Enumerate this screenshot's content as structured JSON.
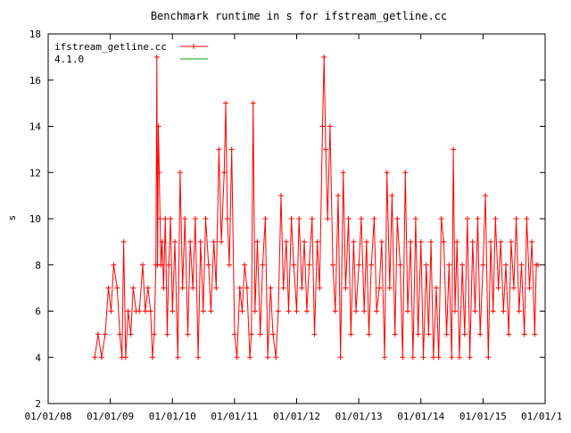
{
  "chart_data": {
    "type": "line",
    "title": "Benchmark runtime in s for ifstream_getline.cc",
    "xlabel": "",
    "ylabel": "s",
    "ylim": [
      2,
      18
    ],
    "yticks": [
      "2",
      "4",
      "6",
      "8",
      "10",
      "12",
      "14",
      "16",
      "18"
    ],
    "xlim": [
      "2008-01-01",
      "2016-01-01"
    ],
    "xticks": [
      "01/01/08",
      "01/01/09",
      "01/01/10",
      "01/01/11",
      "01/01/12",
      "01/01/13",
      "01/01/14",
      "01/01/15",
      "01/01/1"
    ],
    "grid": false,
    "legend_position": "top-left",
    "series": [
      {
        "name": "ifstream_getline.cc",
        "color": "#ff0000",
        "marker": "plus",
        "points": [
          [
            "2008-10-01",
            4
          ],
          [
            "2008-10-20",
            5
          ],
          [
            "2008-11-10",
            4
          ],
          [
            "2008-12-01",
            5
          ],
          [
            "2008-12-20",
            7
          ],
          [
            "2009-01-05",
            6
          ],
          [
            "2009-01-20",
            8
          ],
          [
            "2009-02-10",
            7
          ],
          [
            "2009-02-25",
            5
          ],
          [
            "2009-03-10",
            4
          ],
          [
            "2009-03-20",
            9
          ],
          [
            "2009-04-01",
            4
          ],
          [
            "2009-04-15",
            6
          ],
          [
            "2009-05-01",
            5
          ],
          [
            "2009-05-15",
            7
          ],
          [
            "2009-06-01",
            6
          ],
          [
            "2009-06-20",
            6
          ],
          [
            "2009-07-10",
            8
          ],
          [
            "2009-07-25",
            6
          ],
          [
            "2009-08-10",
            7
          ],
          [
            "2009-08-25",
            6
          ],
          [
            "2009-09-05",
            4
          ],
          [
            "2009-09-15",
            5
          ],
          [
            "2009-09-25",
            8
          ],
          [
            "2009-10-01",
            17
          ],
          [
            "2009-10-05",
            8
          ],
          [
            "2009-10-10",
            14
          ],
          [
            "2009-10-15",
            12
          ],
          [
            "2009-10-20",
            10
          ],
          [
            "2009-10-25",
            8
          ],
          [
            "2009-11-01",
            9
          ],
          [
            "2009-11-10",
            7
          ],
          [
            "2009-11-20",
            10
          ],
          [
            "2009-12-01",
            5
          ],
          [
            "2009-12-10",
            8
          ],
          [
            "2009-12-20",
            10
          ],
          [
            "2010-01-01",
            6
          ],
          [
            "2010-01-15",
            9
          ],
          [
            "2010-02-01",
            4
          ],
          [
            "2010-02-15",
            12
          ],
          [
            "2010-03-01",
            7
          ],
          [
            "2010-03-15",
            10
          ],
          [
            "2010-04-01",
            5
          ],
          [
            "2010-04-15",
            9
          ],
          [
            "2010-05-01",
            7
          ],
          [
            "2010-05-15",
            10
          ],
          [
            "2010-06-01",
            4
          ],
          [
            "2010-06-15",
            9
          ],
          [
            "2010-07-01",
            6
          ],
          [
            "2010-07-15",
            10
          ],
          [
            "2010-08-01",
            8
          ],
          [
            "2010-08-15",
            6
          ],
          [
            "2010-09-01",
            9
          ],
          [
            "2010-09-15",
            7
          ],
          [
            "2010-10-01",
            13
          ],
          [
            "2010-10-15",
            9
          ],
          [
            "2010-11-01",
            12
          ],
          [
            "2010-11-10",
            15
          ],
          [
            "2010-11-20",
            10
          ],
          [
            "2010-12-01",
            8
          ],
          [
            "2010-12-15",
            13
          ],
          [
            "2011-01-01",
            5
          ],
          [
            "2011-01-15",
            4
          ],
          [
            "2011-02-01",
            7
          ],
          [
            "2011-02-15",
            6
          ],
          [
            "2011-03-01",
            8
          ],
          [
            "2011-03-15",
            7
          ],
          [
            "2011-04-01",
            4
          ],
          [
            "2011-04-10",
            5
          ],
          [
            "2011-04-20",
            15
          ],
          [
            "2011-05-01",
            6
          ],
          [
            "2011-05-15",
            9
          ],
          [
            "2011-06-01",
            5
          ],
          [
            "2011-06-15",
            8
          ],
          [
            "2011-07-01",
            10
          ],
          [
            "2011-07-15",
            4
          ],
          [
            "2011-08-01",
            7
          ],
          [
            "2011-08-15",
            5
          ],
          [
            "2011-09-01",
            4
          ],
          [
            "2011-09-15",
            6
          ],
          [
            "2011-10-01",
            11
          ],
          [
            "2011-10-15",
            7
          ],
          [
            "2011-11-01",
            9
          ],
          [
            "2011-11-15",
            6
          ],
          [
            "2011-12-01",
            10
          ],
          [
            "2011-12-15",
            8
          ],
          [
            "2012-01-01",
            6
          ],
          [
            "2012-01-15",
            10
          ],
          [
            "2012-02-01",
            7
          ],
          [
            "2012-02-15",
            9
          ],
          [
            "2012-03-01",
            6
          ],
          [
            "2012-03-15",
            8
          ],
          [
            "2012-04-01",
            10
          ],
          [
            "2012-04-15",
            5
          ],
          [
            "2012-05-01",
            9
          ],
          [
            "2012-05-15",
            7
          ],
          [
            "2012-06-01",
            14
          ],
          [
            "2012-06-10",
            17
          ],
          [
            "2012-06-20",
            13
          ],
          [
            "2012-07-01",
            10
          ],
          [
            "2012-07-15",
            14
          ],
          [
            "2012-08-01",
            8
          ],
          [
            "2012-08-15",
            6
          ],
          [
            "2012-09-01",
            11
          ],
          [
            "2012-09-15",
            4
          ],
          [
            "2012-10-01",
            12
          ],
          [
            "2012-10-15",
            7
          ],
          [
            "2012-11-01",
            10
          ],
          [
            "2012-11-15",
            5
          ],
          [
            "2012-12-01",
            9
          ],
          [
            "2012-12-15",
            6
          ],
          [
            "2013-01-01",
            8
          ],
          [
            "2013-01-15",
            10
          ],
          [
            "2013-02-01",
            6
          ],
          [
            "2013-02-15",
            9
          ],
          [
            "2013-03-01",
            5
          ],
          [
            "2013-03-15",
            8
          ],
          [
            "2013-04-01",
            10
          ],
          [
            "2013-04-15",
            6
          ],
          [
            "2013-05-01",
            7
          ],
          [
            "2013-05-15",
            9
          ],
          [
            "2013-06-01",
            4
          ],
          [
            "2013-06-15",
            12
          ],
          [
            "2013-07-01",
            7
          ],
          [
            "2013-07-15",
            11
          ],
          [
            "2013-08-01",
            5
          ],
          [
            "2013-08-15",
            10
          ],
          [
            "2013-09-01",
            8
          ],
          [
            "2013-09-15",
            4
          ],
          [
            "2013-10-01",
            12
          ],
          [
            "2013-10-15",
            6
          ],
          [
            "2013-11-01",
            9
          ],
          [
            "2013-11-15",
            4
          ],
          [
            "2013-12-01",
            10
          ],
          [
            "2013-12-15",
            5
          ],
          [
            "2014-01-01",
            9
          ],
          [
            "2014-01-15",
            4
          ],
          [
            "2014-02-01",
            8
          ],
          [
            "2014-02-15",
            5
          ],
          [
            "2014-03-01",
            9
          ],
          [
            "2014-03-15",
            4
          ],
          [
            "2014-04-01",
            7
          ],
          [
            "2014-04-15",
            4
          ],
          [
            "2014-05-01",
            10
          ],
          [
            "2014-05-15",
            9
          ],
          [
            "2014-06-01",
            5
          ],
          [
            "2014-06-15",
            8
          ],
          [
            "2014-07-01",
            4
          ],
          [
            "2014-07-10",
            13
          ],
          [
            "2014-07-20",
            6
          ],
          [
            "2014-08-01",
            9
          ],
          [
            "2014-08-15",
            4
          ],
          [
            "2014-09-01",
            8
          ],
          [
            "2014-09-15",
            5
          ],
          [
            "2014-10-01",
            10
          ],
          [
            "2014-10-15",
            4
          ],
          [
            "2014-11-01",
            9
          ],
          [
            "2014-11-15",
            6
          ],
          [
            "2014-12-01",
            10
          ],
          [
            "2014-12-15",
            5
          ],
          [
            "2015-01-01",
            8
          ],
          [
            "2015-01-15",
            11
          ],
          [
            "2015-02-01",
            4
          ],
          [
            "2015-02-15",
            9
          ],
          [
            "2015-03-01",
            6
          ],
          [
            "2015-03-15",
            10
          ],
          [
            "2015-04-01",
            7
          ],
          [
            "2015-04-15",
            9
          ],
          [
            "2015-05-01",
            6
          ],
          [
            "2015-05-15",
            8
          ],
          [
            "2015-06-01",
            5
          ],
          [
            "2015-06-15",
            9
          ],
          [
            "2015-07-01",
            7
          ],
          [
            "2015-07-15",
            10
          ],
          [
            "2015-08-01",
            6
          ],
          [
            "2015-08-15",
            8
          ],
          [
            "2015-09-01",
            5
          ],
          [
            "2015-09-15",
            10
          ],
          [
            "2015-10-01",
            7
          ],
          [
            "2015-10-15",
            9
          ],
          [
            "2015-11-01",
            5
          ],
          [
            "2015-11-10",
            8
          ],
          [
            "2015-11-20",
            8
          ]
        ]
      },
      {
        "name": "4.1.0",
        "color": "#00a000",
        "marker": "none",
        "points": []
      }
    ]
  }
}
